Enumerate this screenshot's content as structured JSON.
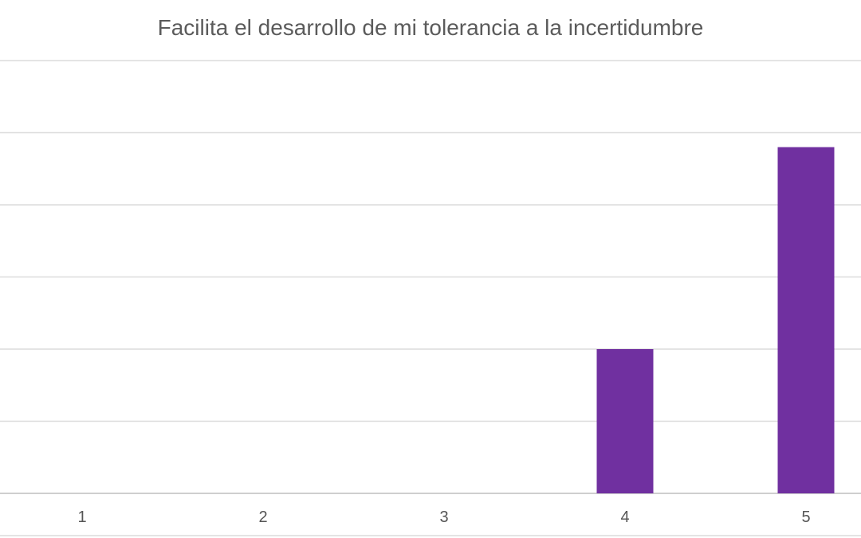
{
  "chart_data": {
    "type": "bar",
    "title": "Facilita el desarrollo de mi tolerancia a la incertidumbre",
    "categories": [
      "1",
      "2",
      "3",
      "4",
      "5"
    ],
    "values": [
      0,
      0,
      0,
      2,
      4.8
    ],
    "ylim": [
      0,
      6
    ],
    "y_gridlines": [
      0,
      1,
      2,
      3,
      4,
      5,
      6
    ],
    "grid": true,
    "xlabel": "",
    "ylabel": "",
    "bar_color": "#7030a0"
  }
}
